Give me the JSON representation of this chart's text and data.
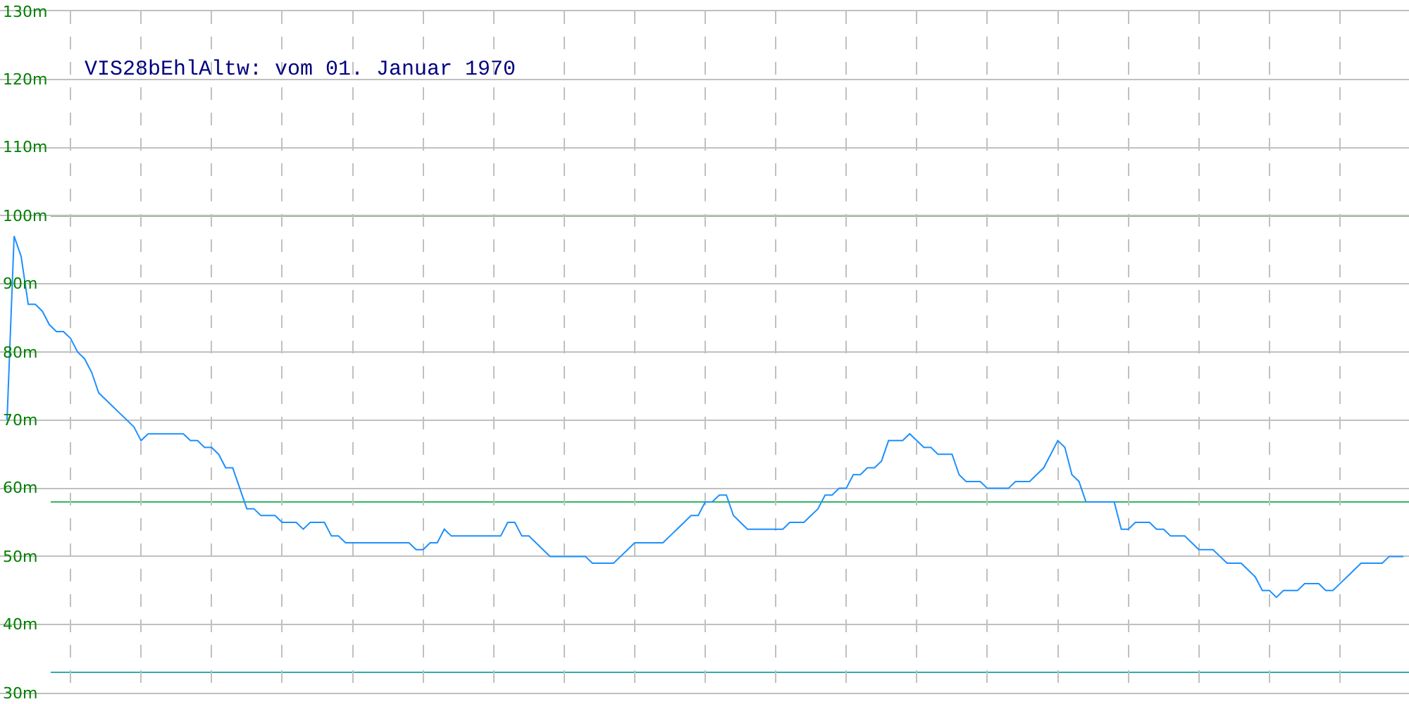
{
  "chart_data": {
    "type": "line",
    "title": "VIS28bEhlAltw: vom 01. Januar 1970",
    "categories": [
      null,
      null,
      null,
      null,
      null,
      null,
      null,
      null,
      null,
      null,
      null,
      null,
      null,
      null,
      null,
      null,
      null,
      null,
      null,
      null,
      null,
      null,
      null,
      null,
      null,
      null,
      null,
      null,
      null,
      null,
      null,
      null,
      null,
      null,
      null,
      null,
      null,
      null,
      null,
      null,
      null,
      null,
      null,
      null,
      null,
      null,
      null,
      null,
      null,
      null,
      null,
      null,
      null,
      null,
      null,
      null,
      null,
      null,
      null,
      null,
      null,
      null,
      null,
      null,
      null,
      null,
      null,
      null,
      null,
      null,
      null,
      null,
      null,
      null,
      null,
      null,
      null,
      null,
      null,
      null,
      null,
      null,
      null,
      null,
      null,
      null,
      null,
      null,
      null,
      null,
      null,
      null,
      null,
      null,
      null,
      null,
      null,
      null,
      null,
      null,
      null,
      null,
      null,
      null,
      null,
      null,
      null,
      null,
      null,
      null,
      null,
      null,
      null,
      null,
      null,
      null,
      null,
      null,
      null,
      null,
      null,
      null,
      null,
      null,
      null,
      null,
      null,
      null,
      null,
      null,
      null,
      null,
      null,
      null,
      null,
      null,
      null,
      null,
      null,
      null,
      null,
      null,
      null,
      null,
      null,
      null,
      null,
      null,
      null,
      null,
      null,
      null,
      null,
      null,
      null,
      null,
      null,
      null,
      null,
      null,
      null,
      null,
      null,
      null,
      null,
      null,
      null,
      null,
      null,
      null,
      null,
      null,
      null,
      null,
      null,
      null,
      null,
      null,
      null,
      null,
      null,
      null,
      null,
      null,
      null,
      null,
      null,
      null,
      null,
      null,
      null,
      null,
      null,
      null,
      null,
      null,
      null,
      null,
      null
    ],
    "series": [
      {
        "color": "#1e90ff",
        "values": [
          70,
          97,
          94,
          87,
          87,
          86,
          84,
          83,
          83,
          82,
          80,
          79,
          77,
          74,
          73,
          72,
          71,
          70,
          69,
          67,
          68,
          68,
          68,
          68,
          68,
          68,
          67,
          67,
          66,
          66,
          65,
          63,
          63,
          60,
          57,
          57,
          56,
          56,
          56,
          55,
          55,
          55,
          54,
          55,
          55,
          55,
          53,
          53,
          52,
          52,
          52,
          52,
          52,
          52,
          52,
          52,
          52,
          52,
          51,
          51,
          52,
          52,
          54,
          53,
          53,
          53,
          53,
          53,
          53,
          53,
          53,
          55,
          55,
          53,
          53,
          52,
          51,
          50,
          50,
          50,
          50,
          50,
          50,
          49,
          49,
          49,
          49,
          50,
          51,
          52,
          52,
          52,
          52,
          52,
          53,
          54,
          55,
          56,
          56,
          58,
          58,
          59,
          59,
          56,
          55,
          54,
          54,
          54,
          54,
          54,
          54,
          55,
          55,
          55,
          56,
          57,
          59,
          59,
          60,
          60,
          62,
          62,
          63,
          63,
          64,
          67,
          67,
          67,
          68,
          67,
          66,
          66,
          65,
          65,
          65,
          62,
          61,
          61,
          61,
          60,
          60,
          60,
          60,
          61,
          61,
          61,
          62,
          63,
          65,
          67,
          66,
          62,
          61,
          58,
          58,
          58,
          58,
          58,
          54,
          54,
          55,
          55,
          55,
          54,
          54,
          53,
          53,
          53,
          52,
          51,
          51,
          51,
          50,
          49,
          49,
          49,
          48,
          47,
          45,
          45,
          44,
          45,
          45,
          45,
          46,
          46,
          46,
          45,
          45,
          46,
          47,
          48,
          49,
          49,
          49,
          49,
          50,
          50,
          50
        ]
      }
    ],
    "ylim": [
      30,
      130
    ],
    "yticks": [
      {
        "value": 30,
        "label": "30m"
      },
      {
        "value": 40,
        "label": "40m"
      },
      {
        "value": 50,
        "label": "50m"
      },
      {
        "value": 60,
        "label": "60m"
      },
      {
        "value": 70,
        "label": "70m"
      },
      {
        "value": 80,
        "label": "80m"
      },
      {
        "value": 90,
        "label": "90m"
      },
      {
        "value": 100,
        "label": "100m"
      },
      {
        "value": 110,
        "label": "110m"
      },
      {
        "value": 120,
        "label": "120m"
      },
      {
        "value": 130,
        "label": "130m"
      }
    ],
    "ref_lines": [
      {
        "axis": "y",
        "value": 100,
        "color": "#008000"
      },
      {
        "axis": "y",
        "value": 58,
        "color": "#33b366"
      },
      {
        "axis": "y",
        "value": 33,
        "color": "#33aaaa"
      }
    ],
    "grid": true,
    "tick_labels": "y"
  }
}
